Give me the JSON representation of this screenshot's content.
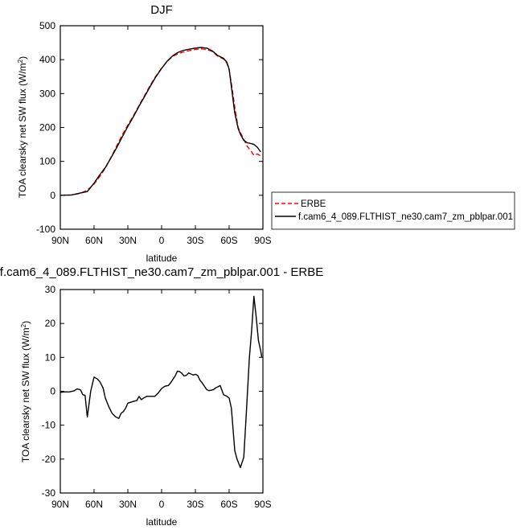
{
  "chart_data": [
    {
      "type": "line",
      "title": "DJF",
      "xlabel": "latitude",
      "ylabel": "TOA clearsky net SW flux (W/m",
      "ylabel_sup": "2",
      "ylabel_close": ")",
      "xlim": [
        90,
        -90
      ],
      "ylim": [
        -100,
        500
      ],
      "x_ticks": [
        90,
        60,
        30,
        0,
        -30,
        -60,
        -90
      ],
      "x_tick_labels": [
        "90N",
        "60N",
        "30N",
        "0",
        "30S",
        "60S",
        "90S"
      ],
      "y_ticks": [
        -100,
        0,
        100,
        200,
        300,
        400,
        500
      ],
      "y_tick_labels": [
        "-100",
        "0",
        "100",
        "200",
        "300",
        "400",
        "500"
      ],
      "legend_position": "right",
      "series": [
        {
          "name": "ERBE",
          "color": "#ff0000",
          "dash": "dashed",
          "x": [
            90,
            80,
            72,
            66,
            60,
            55,
            50,
            45,
            40,
            35,
            30,
            25,
            20,
            15,
            10,
            5,
            0,
            -5,
            -10,
            -15,
            -20,
            -25,
            -30,
            -35,
            -40,
            -45,
            -50,
            -55,
            -58,
            -60,
            -62,
            -65,
            -68,
            -70,
            -73,
            -76,
            -80,
            -82,
            -85,
            -88
          ],
          "y": [
            0,
            1,
            6,
            15,
            33,
            55,
            80,
            112,
            145,
            178,
            207,
            235,
            265,
            295,
            325,
            352,
            375,
            395,
            410,
            418,
            423,
            427,
            430,
            432,
            430,
            424,
            410,
            402,
            390,
            370,
            330,
            260,
            200,
            185,
            165,
            145,
            128,
            118,
            122,
            116
          ]
        },
        {
          "name": "f.cam6_4_089.FLTHIST_ne30.cam7_zm_pblpar.001",
          "color": "#000000",
          "dash": "solid",
          "x": [
            90,
            80,
            72,
            66,
            60,
            55,
            50,
            45,
            40,
            35,
            30,
            25,
            20,
            15,
            10,
            5,
            0,
            -5,
            -10,
            -15,
            -20,
            -25,
            -30,
            -35,
            -40,
            -45,
            -50,
            -55,
            -58,
            -60,
            -62,
            -65,
            -68,
            -70,
            -73,
            -76,
            -80,
            -82,
            -85,
            -88
          ],
          "y": [
            0,
            1,
            7,
            11,
            36,
            60,
            82,
            110,
            140,
            172,
            203,
            232,
            263,
            292,
            322,
            350,
            374,
            396,
            412,
            422,
            428,
            431,
            434,
            436,
            434,
            426,
            412,
            404,
            392,
            372,
            320,
            243,
            197,
            180,
            162,
            155,
            152,
            150,
            142,
            128
          ]
        }
      ]
    },
    {
      "type": "line",
      "title": "f.cam6_4_089.FLTHIST_ne30.cam7_zm_pblpar.001 - ERBE",
      "xlabel": "latitude",
      "ylabel": "TOA clearsky net SW flux (W/m",
      "ylabel_sup": "2",
      "ylabel_close": ")",
      "xlim": [
        90,
        -90
      ],
      "ylim": [
        -30,
        30
      ],
      "x_ticks": [
        90,
        60,
        30,
        0,
        -30,
        -60,
        -90
      ],
      "x_tick_labels": [
        "90N",
        "60N",
        "30N",
        "0",
        "30S",
        "60S",
        "90S"
      ],
      "y_ticks": [
        -30,
        -20,
        -10,
        0,
        10,
        20,
        30
      ],
      "y_tick_labels": [
        "-30",
        "-20",
        "-10",
        "0",
        "10",
        "20",
        "30"
      ],
      "series": [
        {
          "color": "#000000",
          "dash": "solid",
          "x": [
            90,
            86,
            82,
            78,
            75,
            72,
            70,
            68,
            66,
            63,
            60,
            57,
            55,
            52,
            50,
            47,
            44,
            41,
            38,
            36,
            34,
            32,
            30,
            28,
            25,
            22,
            20,
            18,
            16,
            13,
            11,
            9,
            6,
            3,
            0,
            -3,
            -6,
            -8,
            -10,
            -12,
            -14,
            -16,
            -18,
            -20,
            -22,
            -24,
            -26,
            -28,
            -30,
            -32,
            -34,
            -36,
            -38,
            -40,
            -42,
            -44,
            -46,
            -48,
            -50,
            -52,
            -55,
            -58,
            -60,
            -62,
            -65,
            -67,
            -70,
            -73,
            -75,
            -78,
            -80,
            -82,
            -84,
            -86,
            -88,
            -89
          ],
          "y": [
            -0.3,
            -0.2,
            -0.2,
            0.1,
            0.7,
            0.4,
            -1,
            -1.2,
            -7.6,
            0,
            4.2,
            3.6,
            2.9,
            1,
            -2,
            -4.5,
            -6.5,
            -7.5,
            -8,
            -6.5,
            -6,
            -5,
            -3.5,
            -3.3,
            -3,
            -2.7,
            -1.5,
            -2.5,
            -2,
            -1.5,
            -1.5,
            -1.5,
            -1.5,
            -0.5,
            0.8,
            1.5,
            1.7,
            2.5,
            3.5,
            4.5,
            5.9,
            5.8,
            5.3,
            4.5,
            4.7,
            5.4,
            5.1,
            4.8,
            5,
            4.7,
            3.3,
            2.5,
            1.5,
            0.5,
            0.2,
            0.3,
            0.5,
            1,
            1.3,
            1.7,
            -1,
            -1.5,
            -2,
            -5,
            -17.5,
            -20,
            -22.5,
            -19.5,
            -8,
            10,
            18,
            28,
            22,
            15,
            12,
            10
          ]
        }
      ]
    }
  ]
}
